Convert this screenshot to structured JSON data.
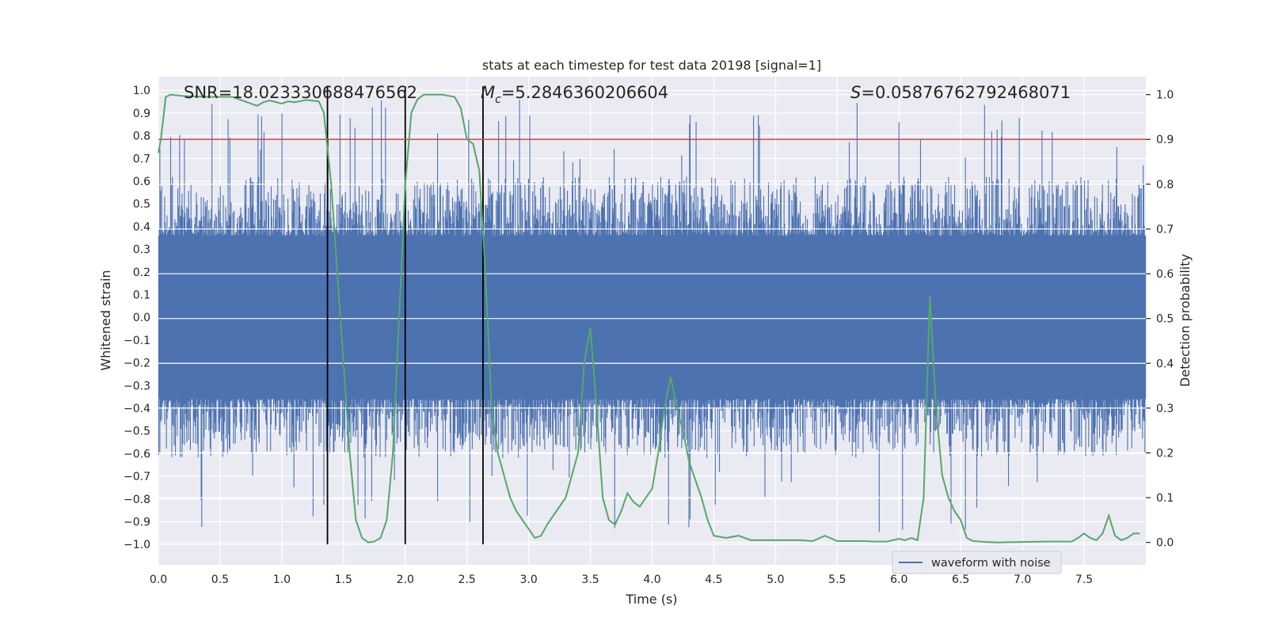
{
  "chart_data": {
    "type": "line",
    "title": "stats at each timestep for test data 20198 [signal=1]",
    "xlabel": "Time (s)",
    "ylabel_left": "Whitened strain",
    "ylabel_right": "Detection probability",
    "xlim": [
      0.0,
      8.0
    ],
    "ylim_left": [
      -1.09,
      1.06
    ],
    "ylim_right": [
      -0.05,
      1.04
    ],
    "xticks": [
      0.0,
      0.5,
      1.0,
      1.5,
      2.0,
      2.5,
      3.0,
      3.5,
      4.0,
      4.5,
      5.0,
      5.5,
      6.0,
      6.5,
      7.0,
      7.5
    ],
    "xtick_labels": [
      "0.0",
      "0.5",
      "1.0",
      "1.5",
      "2.0",
      "2.5",
      "3.0",
      "3.5",
      "4.0",
      "4.5",
      "5.0",
      "5.5",
      "6.0",
      "6.5",
      "7.0",
      "7.5"
    ],
    "yticks_left": [
      1.0,
      0.9,
      0.8,
      0.7,
      0.6,
      0.5,
      0.4,
      0.3,
      0.2,
      0.1,
      0.0,
      -0.1,
      -0.2,
      -0.3,
      -0.4,
      -0.5,
      -0.6,
      -0.7,
      -0.8,
      -0.9,
      -1.0
    ],
    "ytick_labels_left": [
      "1.0",
      "0.9",
      "0.8",
      "0.7",
      "0.6",
      "0.5",
      "0.4",
      "0.3",
      "0.2",
      "0.1",
      "0.0",
      "−0.1",
      "−0.2",
      "−0.3",
      "−0.4",
      "−0.5",
      "−0.6",
      "−0.7",
      "−0.8",
      "−0.9",
      "−1.0"
    ],
    "yticks_right": [
      1.0,
      0.9,
      0.8,
      0.7,
      0.6,
      0.5,
      0.4,
      0.3,
      0.2,
      0.1,
      0.0
    ],
    "ytick_labels_right": [
      "1.0",
      "0.9",
      "0.8",
      "0.7",
      "0.6",
      "0.5",
      "0.4",
      "0.3",
      "0.2",
      "0.1",
      "0.0"
    ],
    "grid": true,
    "series": [
      {
        "name": "waveform with noise",
        "axis": "left",
        "color": "#4c72b0",
        "band_range": [
          -0.36,
          0.36
        ],
        "envelope_range": [
          -0.62,
          0.62
        ],
        "max_spikes": [
          0.8,
          0.78,
          0.9,
          0.96,
          0.85,
          0.81,
          0.96,
          0.9,
          0.9,
          0.9
        ]
      },
      {
        "name": "detection probability",
        "axis": "right",
        "color": "#55a868",
        "x": [
          0.0,
          0.02,
          0.06,
          0.1,
          0.2,
          0.4,
          0.6,
          0.7,
          0.8,
          0.85,
          0.9,
          1.0,
          1.05,
          1.1,
          1.2,
          1.3,
          1.34,
          1.4,
          1.45,
          1.5,
          1.55,
          1.6,
          1.65,
          1.7,
          1.75,
          1.8,
          1.85,
          1.9,
          1.95,
          2.0,
          2.05,
          2.1,
          2.15,
          2.2,
          2.3,
          2.4,
          2.45,
          2.5,
          2.55,
          2.6,
          2.65,
          2.7,
          2.75,
          2.8,
          2.85,
          2.9,
          2.95,
          3.0,
          3.05,
          3.1,
          3.15,
          3.2,
          3.3,
          3.4,
          3.45,
          3.5,
          3.55,
          3.6,
          3.65,
          3.7,
          3.75,
          3.8,
          3.85,
          3.9,
          3.95,
          4.0,
          4.05,
          4.1,
          4.15,
          4.2,
          4.25,
          4.3,
          4.35,
          4.4,
          4.45,
          4.5,
          4.6,
          4.7,
          4.8,
          5.0,
          5.2,
          5.3,
          5.4,
          5.5,
          5.7,
          5.8,
          5.9,
          6.0,
          6.05,
          6.1,
          6.15,
          6.2,
          6.25,
          6.3,
          6.35,
          6.4,
          6.45,
          6.5,
          6.55,
          6.6,
          6.7,
          6.8,
          7.0,
          7.2,
          7.4,
          7.45,
          7.5,
          7.55,
          7.6,
          7.65,
          7.7,
          7.75,
          7.8,
          7.85,
          7.9,
          7.95
        ],
        "y": [
          0.87,
          0.9,
          0.995,
          1.0,
          0.997,
          0.995,
          0.995,
          0.985,
          0.975,
          0.983,
          0.987,
          0.98,
          0.985,
          0.983,
          0.988,
          0.985,
          0.96,
          0.8,
          0.6,
          0.4,
          0.2,
          0.05,
          0.01,
          0.0,
          0.002,
          0.01,
          0.05,
          0.2,
          0.5,
          0.8,
          0.96,
          0.99,
          1.0,
          1.0,
          1.0,
          0.995,
          0.97,
          0.9,
          0.89,
          0.83,
          0.6,
          0.3,
          0.2,
          0.15,
          0.1,
          0.07,
          0.05,
          0.03,
          0.01,
          0.015,
          0.04,
          0.06,
          0.1,
          0.2,
          0.4,
          0.48,
          0.3,
          0.1,
          0.05,
          0.04,
          0.07,
          0.11,
          0.09,
          0.08,
          0.1,
          0.12,
          0.2,
          0.3,
          0.37,
          0.3,
          0.25,
          0.18,
          0.14,
          0.1,
          0.05,
          0.015,
          0.01,
          0.015,
          0.005,
          0.005,
          0.005,
          0.003,
          0.015,
          0.003,
          0.003,
          0.002,
          0.002,
          0.008,
          0.005,
          0.01,
          0.005,
          0.1,
          0.55,
          0.3,
          0.15,
          0.1,
          0.07,
          0.05,
          0.01,
          0.003,
          0.001,
          0.0,
          0.001,
          0.002,
          0.002,
          0.01,
          0.02,
          0.01,
          0.005,
          0.02,
          0.06,
          0.015,
          0.005,
          0.01,
          0.02,
          0.02
        ]
      }
    ],
    "threshold_line": {
      "axis": "right",
      "value": 0.9,
      "color": "#c44e52"
    },
    "vertical_lines": {
      "x": [
        1.37,
        2.0,
        2.63
      ],
      "color": "#000000"
    },
    "annotations": [
      {
        "name": "snr-annotation",
        "prefix": "",
        "variable": "SNR",
        "text": "=18.023330688476562"
      },
      {
        "name": "chirp-mass-annotation",
        "prefix": "",
        "variable": "M",
        "subscript": "c",
        "text": "=5.2846360206604"
      },
      {
        "name": "s-annotation",
        "prefix": "",
        "variable": "S",
        "text": "=0.05876762792468071"
      }
    ],
    "legend": {
      "location": "bottom-right",
      "entries": [
        "waveform with noise"
      ]
    }
  }
}
